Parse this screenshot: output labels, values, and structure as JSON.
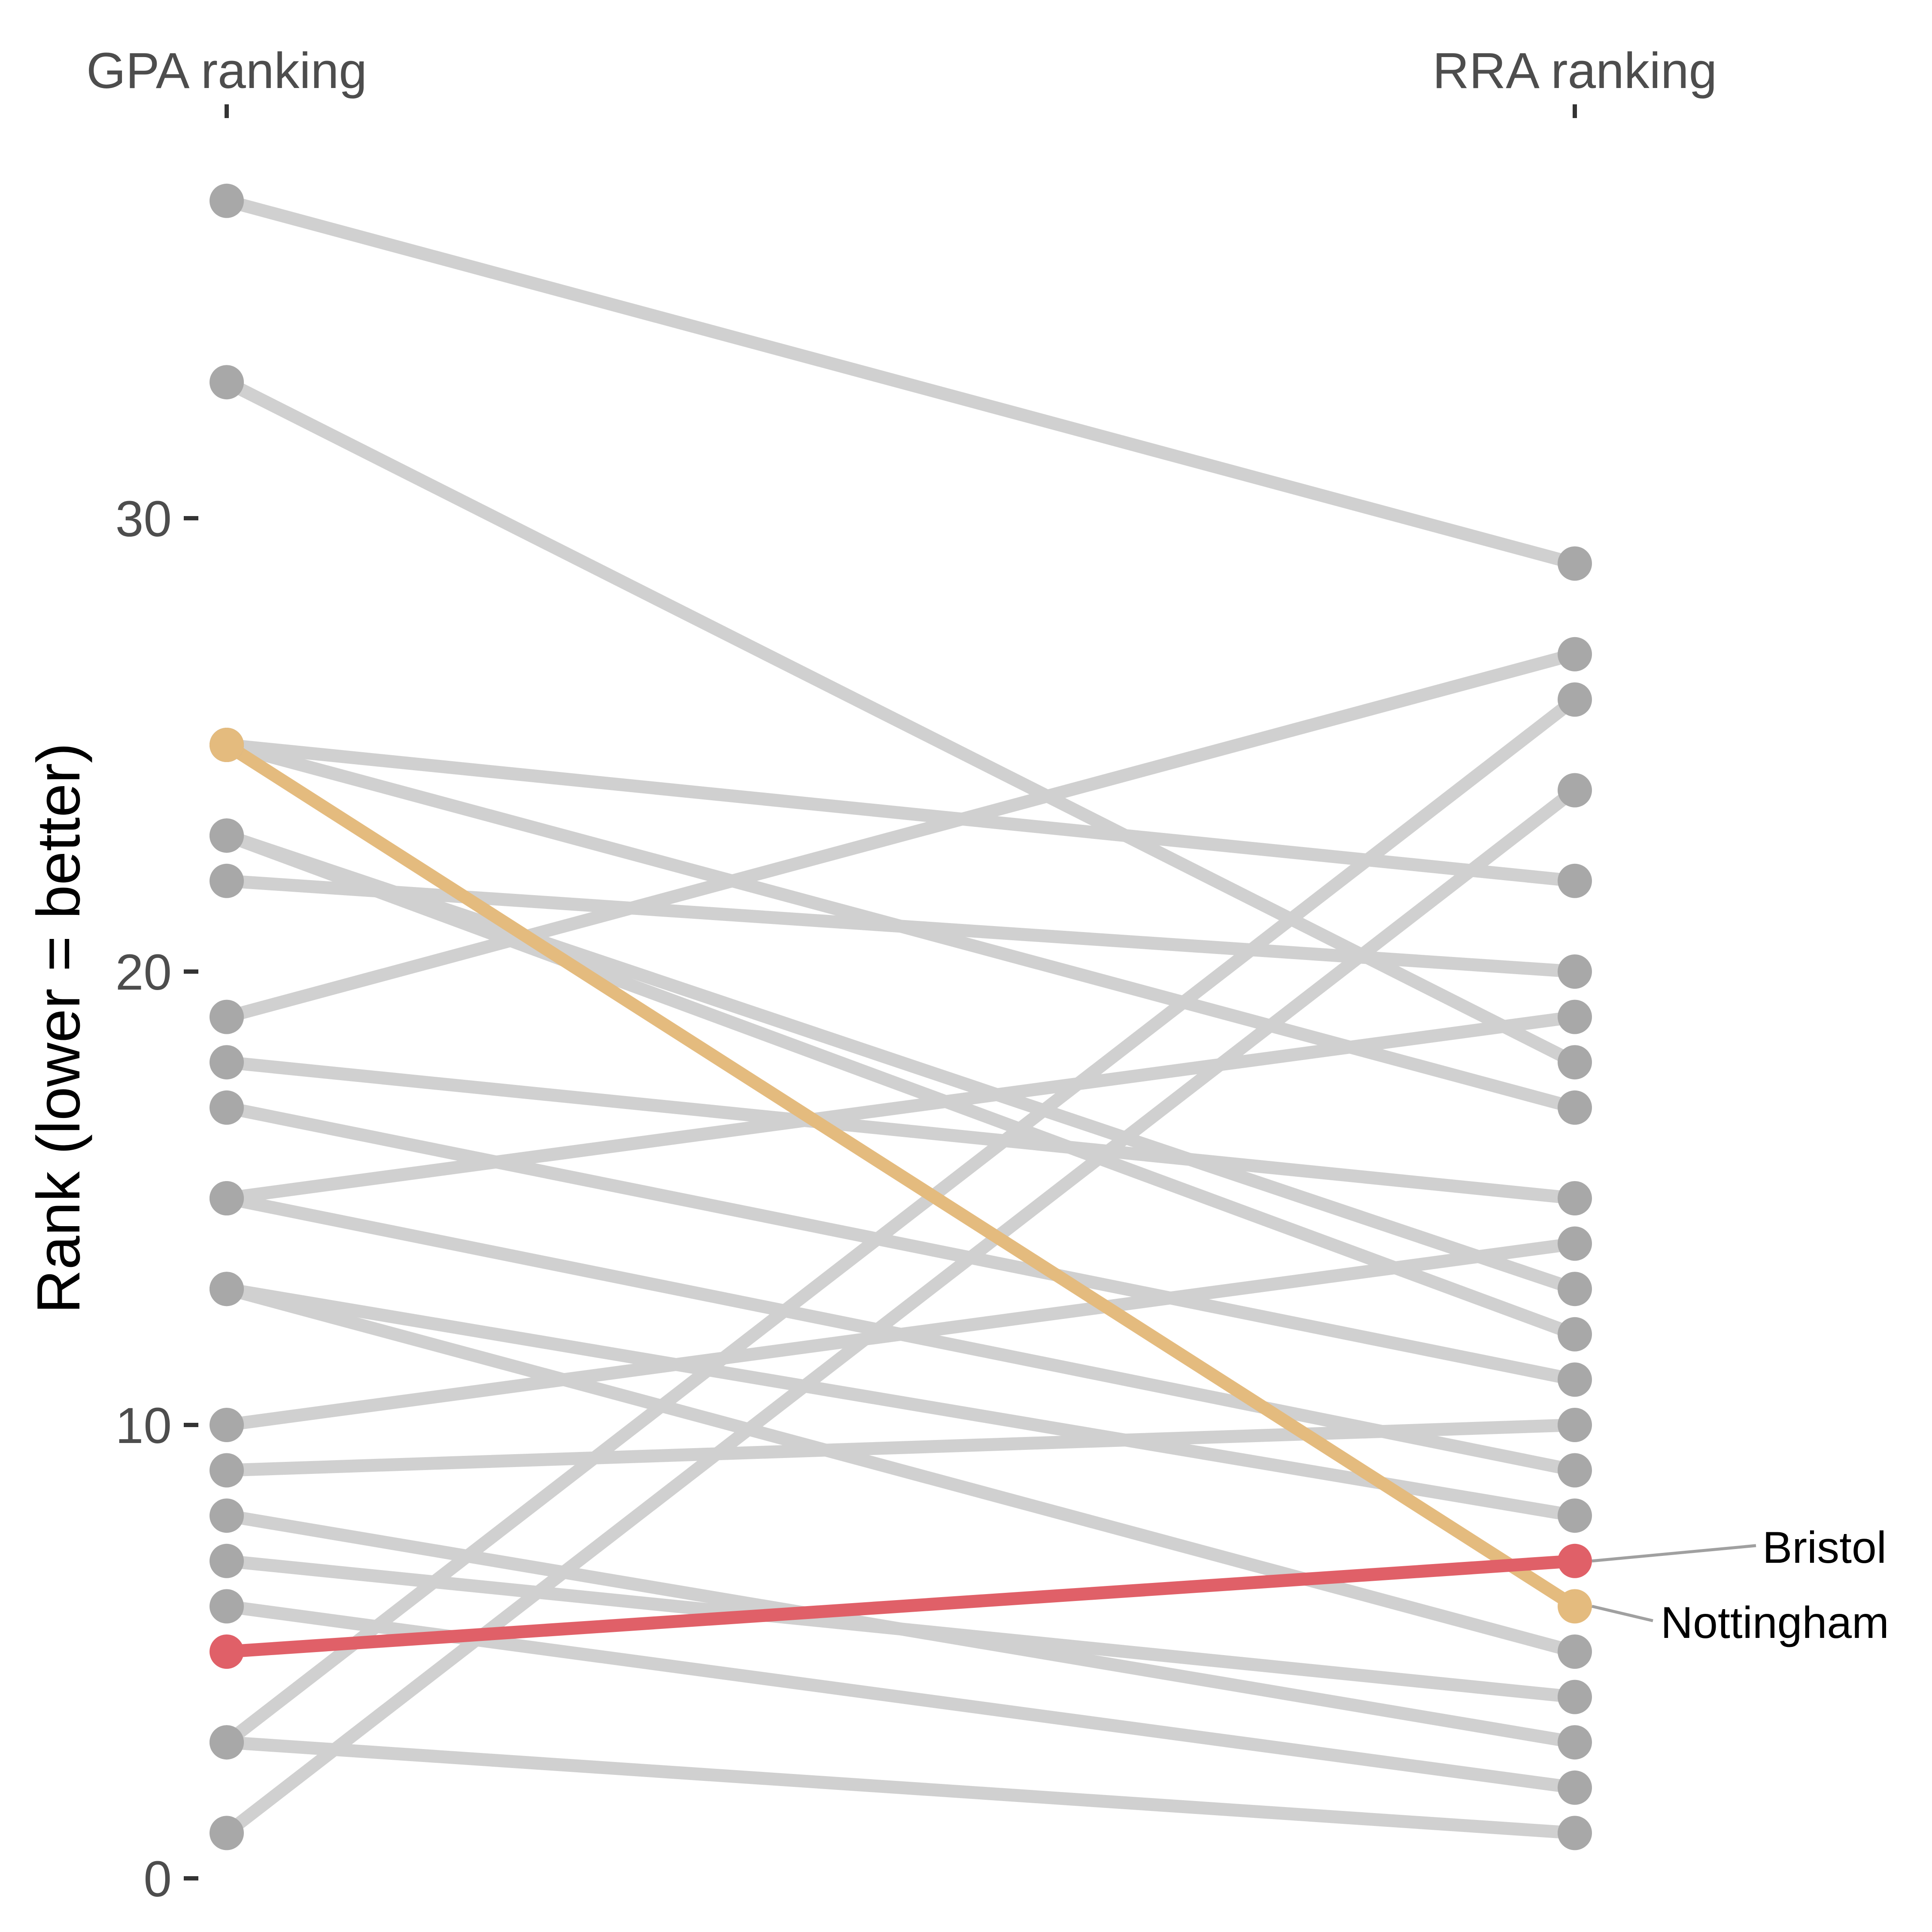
{
  "chart_data": {
    "type": "slope",
    "x_categories": [
      "GPA ranking",
      "RRA ranking"
    ],
    "ylabel": "Rank (lower = better)",
    "ylim": [
      0,
      37
    ],
    "yticks": [
      0,
      10,
      20,
      30
    ],
    "grid": false,
    "legend": "none",
    "colors": {
      "background": "#d0d0d0",
      "point": "#a8a8a8",
      "Bristol": "#e06068",
      "Nottingham": "#e4bb7e",
      "leader": "#a0a0a0"
    },
    "series": [
      {
        "gpa": 37,
        "rra": 29
      },
      {
        "gpa": 33,
        "rra": 18
      },
      {
        "gpa": 25,
        "rra": 22
      },
      {
        "gpa": 25,
        "rra": 17
      },
      {
        "gpa": 23,
        "rra": 13
      },
      {
        "gpa": 23,
        "rra": 12
      },
      {
        "gpa": 22,
        "rra": 20
      },
      {
        "gpa": 19,
        "rra": 27
      },
      {
        "gpa": 18,
        "rra": 15
      },
      {
        "gpa": 17,
        "rra": 11
      },
      {
        "gpa": 15,
        "rra": 19
      },
      {
        "gpa": 15,
        "rra": 9
      },
      {
        "gpa": 13,
        "rra": 8
      },
      {
        "gpa": 13,
        "rra": 5
      },
      {
        "gpa": 10,
        "rra": 14
      },
      {
        "gpa": 9,
        "rra": 10
      },
      {
        "gpa": 8,
        "rra": 3
      },
      {
        "gpa": 7,
        "rra": 4
      },
      {
        "gpa": 6,
        "rra": 2
      },
      {
        "gpa": 3,
        "rra": 26
      },
      {
        "gpa": 1,
        "rra": 24
      },
      {
        "gpa": 3,
        "rra": 1
      },
      {
        "name": "Nottingham",
        "gpa": 25,
        "rra": 6,
        "highlight": true
      },
      {
        "name": "Bristol",
        "gpa": 5,
        "rra": 7,
        "highlight": true
      }
    ]
  }
}
